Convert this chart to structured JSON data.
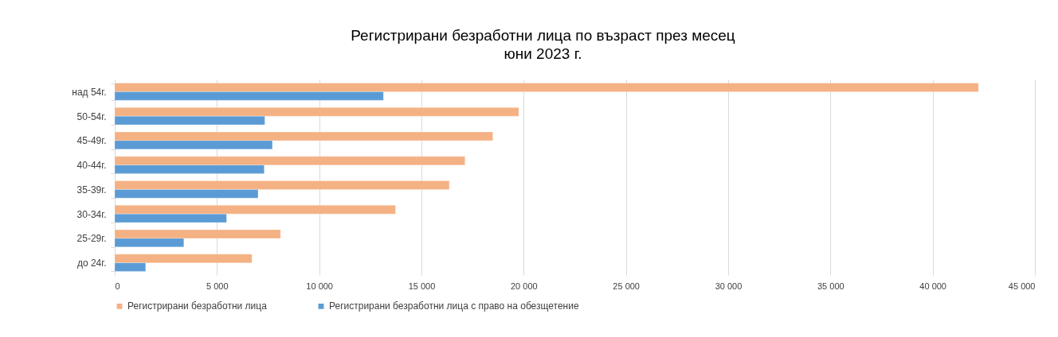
{
  "chart_data": {
    "type": "bar",
    "orientation": "horizontal",
    "title": "Регистрирани безработни лица по възраст през месец",
    "subtitle": "юни 2023 г.",
    "categories": [
      "над 54г.",
      "50-54г.",
      "45-49г.",
      "40-44г.",
      "35-39г.",
      "30-34г.",
      "25-29г.",
      "до 24г."
    ],
    "series": [
      {
        "name": "Регистрирани безработни лица",
        "color": "#f4b183",
        "values": [
          42240,
          19760,
          18490,
          17130,
          16360,
          13730,
          8110,
          6710
        ]
      },
      {
        "name": "Регистрирани безработни лица с право на обезщетение",
        "color": "#5b9bd5",
        "values": [
          13140,
          7340,
          7710,
          7310,
          7010,
          5470,
          3380,
          1510
        ]
      }
    ],
    "xlim": [
      0,
      45000
    ],
    "xticks": [
      0,
      {
        "value": 5000,
        "label": "5 000"
      },
      {
        "value": 10000,
        "label": "10 000"
      },
      {
        "value": 15000,
        "label": "15 000"
      },
      {
        "value": 20000,
        "label": "20 000"
      },
      {
        "value": 25000,
        "label": "25 000"
      },
      {
        "value": 30000,
        "label": "30 000"
      },
      {
        "value": 35000,
        "label": "35 000"
      },
      {
        "value": 40000,
        "label": "40 000"
      },
      {
        "value": 45000,
        "label": "45 000"
      }
    ],
    "grid": "x",
    "legend": "bottom"
  }
}
